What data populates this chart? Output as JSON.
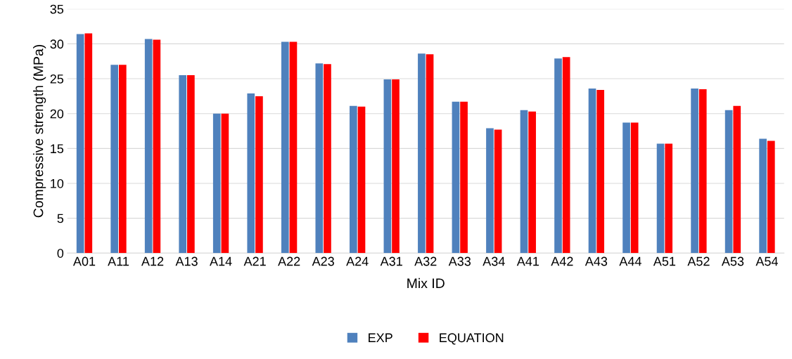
{
  "chart_data": {
    "type": "bar",
    "xlabel": "Mix ID",
    "ylabel": "Compressive strength (MPa)",
    "categories": [
      "A01",
      "A11",
      "A12",
      "A13",
      "A14",
      "A21",
      "A22",
      "A23",
      "A24",
      "A31",
      "A32",
      "A33",
      "A34",
      "A41",
      "A42",
      "A43",
      "A44",
      "A51",
      "A52",
      "A53",
      "A54"
    ],
    "series": [
      {
        "name": "EXP",
        "color": "#4f81bd",
        "values": [
          31.4,
          27.0,
          30.7,
          25.5,
          20.0,
          22.9,
          30.3,
          27.2,
          21.1,
          24.9,
          28.6,
          21.7,
          17.9,
          20.5,
          27.9,
          23.6,
          18.7,
          15.7,
          23.6,
          20.5,
          16.4
        ]
      },
      {
        "name": "EQUATION",
        "color": "#ff0000",
        "values": [
          31.5,
          27.0,
          30.6,
          25.5,
          20.0,
          22.5,
          30.3,
          27.1,
          21.0,
          24.9,
          28.5,
          21.7,
          17.7,
          20.3,
          28.1,
          23.4,
          18.7,
          15.7,
          23.5,
          21.1,
          16.1
        ]
      }
    ],
    "ylim": [
      0,
      35
    ],
    "yticks": [
      0,
      5,
      10,
      15,
      20,
      25,
      30,
      35
    ],
    "grid": "y",
    "legend": "bottom"
  }
}
